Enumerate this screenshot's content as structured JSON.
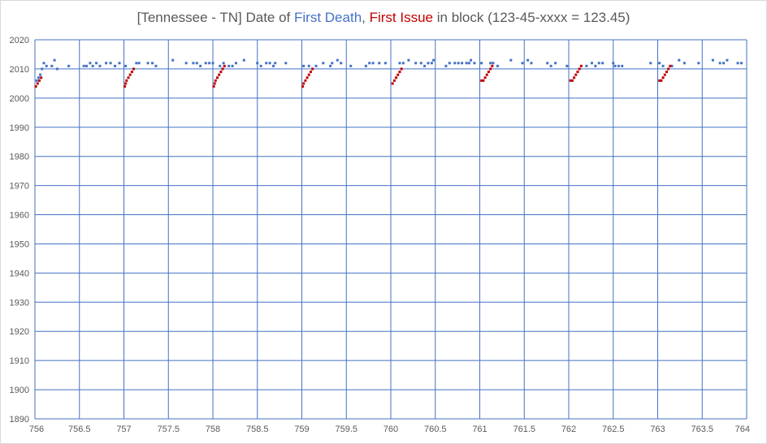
{
  "chart_data": {
    "type": "scatter",
    "title_parts": {
      "prefix": "[Tennessee - TN] Date of ",
      "series1": "First Death",
      "sep": ", ",
      "series2": "First Issue",
      "suffix": " in block (123-45-xxxx = 123.45)"
    },
    "xlim": [
      756,
      764
    ],
    "ylim": [
      1890,
      2020
    ],
    "x_ticks": [
      "756",
      "756.5",
      "757",
      "757.5",
      "758",
      "758.5",
      "759",
      "759.5",
      "760",
      "760.5",
      "761",
      "761.5",
      "762",
      "762.5",
      "763",
      "763.5",
      "764"
    ],
    "y_ticks": [
      "2020",
      "2010",
      "2000",
      "1990",
      "1980",
      "1970",
      "1960",
      "1950",
      "1940",
      "1930",
      "1920",
      "1910",
      "1900",
      "1890"
    ],
    "grid": true,
    "colors": {
      "first_death": "#4472c4",
      "first_issue": "#c00000",
      "grid": "#4472c4",
      "axis_text": "#595959"
    },
    "series": [
      {
        "name": "First Death",
        "color": "#4472c4",
        "points": [
          [
            756.02,
            2006
          ],
          [
            756.04,
            2007
          ],
          [
            756.06,
            2008
          ],
          [
            756.08,
            2010
          ],
          [
            756.1,
            2012
          ],
          [
            756.13,
            2011
          ],
          [
            756.19,
            2011
          ],
          [
            756.22,
            2013
          ],
          [
            756.25,
            2010
          ],
          [
            756.38,
            2011
          ],
          [
            756.55,
            2011
          ],
          [
            756.58,
            2011
          ],
          [
            756.62,
            2012
          ],
          [
            756.65,
            2011
          ],
          [
            756.69,
            2012
          ],
          [
            756.73,
            2011
          ],
          [
            756.8,
            2012
          ],
          [
            756.85,
            2012
          ],
          [
            756.9,
            2011
          ],
          [
            756.95,
            2012
          ],
          [
            757.02,
            2011
          ],
          [
            757.14,
            2012
          ],
          [
            757.17,
            2012
          ],
          [
            757.27,
            2012
          ],
          [
            757.32,
            2012
          ],
          [
            757.36,
            2011
          ],
          [
            757.55,
            2013
          ],
          [
            757.7,
            2012
          ],
          [
            757.78,
            2012
          ],
          [
            757.82,
            2012
          ],
          [
            757.86,
            2011
          ],
          [
            757.92,
            2012
          ],
          [
            757.96,
            2012
          ],
          [
            758.0,
            2012
          ],
          [
            758.08,
            2011
          ],
          [
            758.12,
            2012
          ],
          [
            758.18,
            2011
          ],
          [
            758.22,
            2011
          ],
          [
            758.26,
            2012
          ],
          [
            758.35,
            2013
          ],
          [
            758.5,
            2012
          ],
          [
            758.54,
            2011
          ],
          [
            758.6,
            2012
          ],
          [
            758.64,
            2012
          ],
          [
            758.68,
            2011
          ],
          [
            758.7,
            2012
          ],
          [
            758.82,
            2012
          ],
          [
            759.02,
            2011
          ],
          [
            759.08,
            2011
          ],
          [
            759.16,
            2011
          ],
          [
            759.24,
            2012
          ],
          [
            759.32,
            2011
          ],
          [
            759.34,
            2012
          ],
          [
            759.4,
            2013
          ],
          [
            759.44,
            2012
          ],
          [
            759.55,
            2011
          ],
          [
            759.72,
            2011
          ],
          [
            759.76,
            2012
          ],
          [
            759.8,
            2012
          ],
          [
            759.87,
            2012
          ],
          [
            759.94,
            2012
          ],
          [
            760.1,
            2012
          ],
          [
            760.14,
            2012
          ],
          [
            760.2,
            2013
          ],
          [
            760.28,
            2012
          ],
          [
            760.34,
            2012
          ],
          [
            760.38,
            2011
          ],
          [
            760.42,
            2012
          ],
          [
            760.46,
            2012
          ],
          [
            760.48,
            2013
          ],
          [
            760.62,
            2011
          ],
          [
            760.66,
            2012
          ],
          [
            760.72,
            2012
          ],
          [
            760.76,
            2012
          ],
          [
            760.8,
            2012
          ],
          [
            760.85,
            2012
          ],
          [
            760.88,
            2012
          ],
          [
            760.9,
            2013
          ],
          [
            760.94,
            2012
          ],
          [
            761.02,
            2012
          ],
          [
            761.12,
            2012
          ],
          [
            761.15,
            2012
          ],
          [
            761.2,
            2011
          ],
          [
            761.35,
            2013
          ],
          [
            761.48,
            2012
          ],
          [
            761.54,
            2013
          ],
          [
            761.58,
            2012
          ],
          [
            761.76,
            2012
          ],
          [
            761.8,
            2011
          ],
          [
            761.85,
            2012
          ],
          [
            761.98,
            2011
          ],
          [
            762.2,
            2011
          ],
          [
            762.26,
            2012
          ],
          [
            762.3,
            2011
          ],
          [
            762.34,
            2012
          ],
          [
            762.38,
            2012
          ],
          [
            762.5,
            2012
          ],
          [
            762.52,
            2011
          ],
          [
            762.56,
            2011
          ],
          [
            762.6,
            2011
          ],
          [
            762.92,
            2012
          ],
          [
            763.02,
            2012
          ],
          [
            763.06,
            2011
          ],
          [
            763.16,
            2011
          ],
          [
            763.24,
            2013
          ],
          [
            763.3,
            2012
          ],
          [
            763.46,
            2012
          ],
          [
            763.62,
            2013
          ],
          [
            763.7,
            2012
          ],
          [
            763.74,
            2012
          ],
          [
            763.78,
            2013
          ],
          [
            763.9,
            2012
          ],
          [
            763.94,
            2012
          ]
        ]
      },
      {
        "name": "First Issue",
        "color": "#c00000",
        "points": [
          [
            756.01,
            2004
          ],
          [
            756.03,
            2005
          ],
          [
            756.05,
            2006
          ],
          [
            756.07,
            2007
          ],
          [
            757.01,
            2004
          ],
          [
            757.02,
            2005
          ],
          [
            757.03,
            2006
          ],
          [
            757.05,
            2007
          ],
          [
            757.07,
            2008
          ],
          [
            757.09,
            2009
          ],
          [
            757.11,
            2010
          ],
          [
            758.01,
            2004
          ],
          [
            758.02,
            2005
          ],
          [
            758.03,
            2006
          ],
          [
            758.05,
            2007
          ],
          [
            758.07,
            2008
          ],
          [
            758.09,
            2009
          ],
          [
            758.11,
            2010
          ],
          [
            758.13,
            2011
          ],
          [
            759.01,
            2004
          ],
          [
            759.02,
            2005
          ],
          [
            759.04,
            2006
          ],
          [
            759.06,
            2007
          ],
          [
            759.08,
            2008
          ],
          [
            759.1,
            2009
          ],
          [
            759.12,
            2010
          ],
          [
            760.02,
            2005
          ],
          [
            760.04,
            2006
          ],
          [
            760.06,
            2007
          ],
          [
            760.08,
            2008
          ],
          [
            760.1,
            2009
          ],
          [
            760.12,
            2010
          ],
          [
            761.02,
            2006
          ],
          [
            761.04,
            2006
          ],
          [
            761.06,
            2007
          ],
          [
            761.08,
            2008
          ],
          [
            761.1,
            2009
          ],
          [
            761.12,
            2010
          ],
          [
            761.14,
            2011
          ],
          [
            762.02,
            2006
          ],
          [
            762.04,
            2006
          ],
          [
            762.06,
            2007
          ],
          [
            762.08,
            2008
          ],
          [
            762.1,
            2009
          ],
          [
            762.12,
            2010
          ],
          [
            762.14,
            2011
          ],
          [
            763.02,
            2006
          ],
          [
            763.04,
            2006
          ],
          [
            763.06,
            2007
          ],
          [
            763.08,
            2008
          ],
          [
            763.1,
            2009
          ],
          [
            763.12,
            2010
          ],
          [
            763.14,
            2011
          ]
        ]
      }
    ]
  }
}
